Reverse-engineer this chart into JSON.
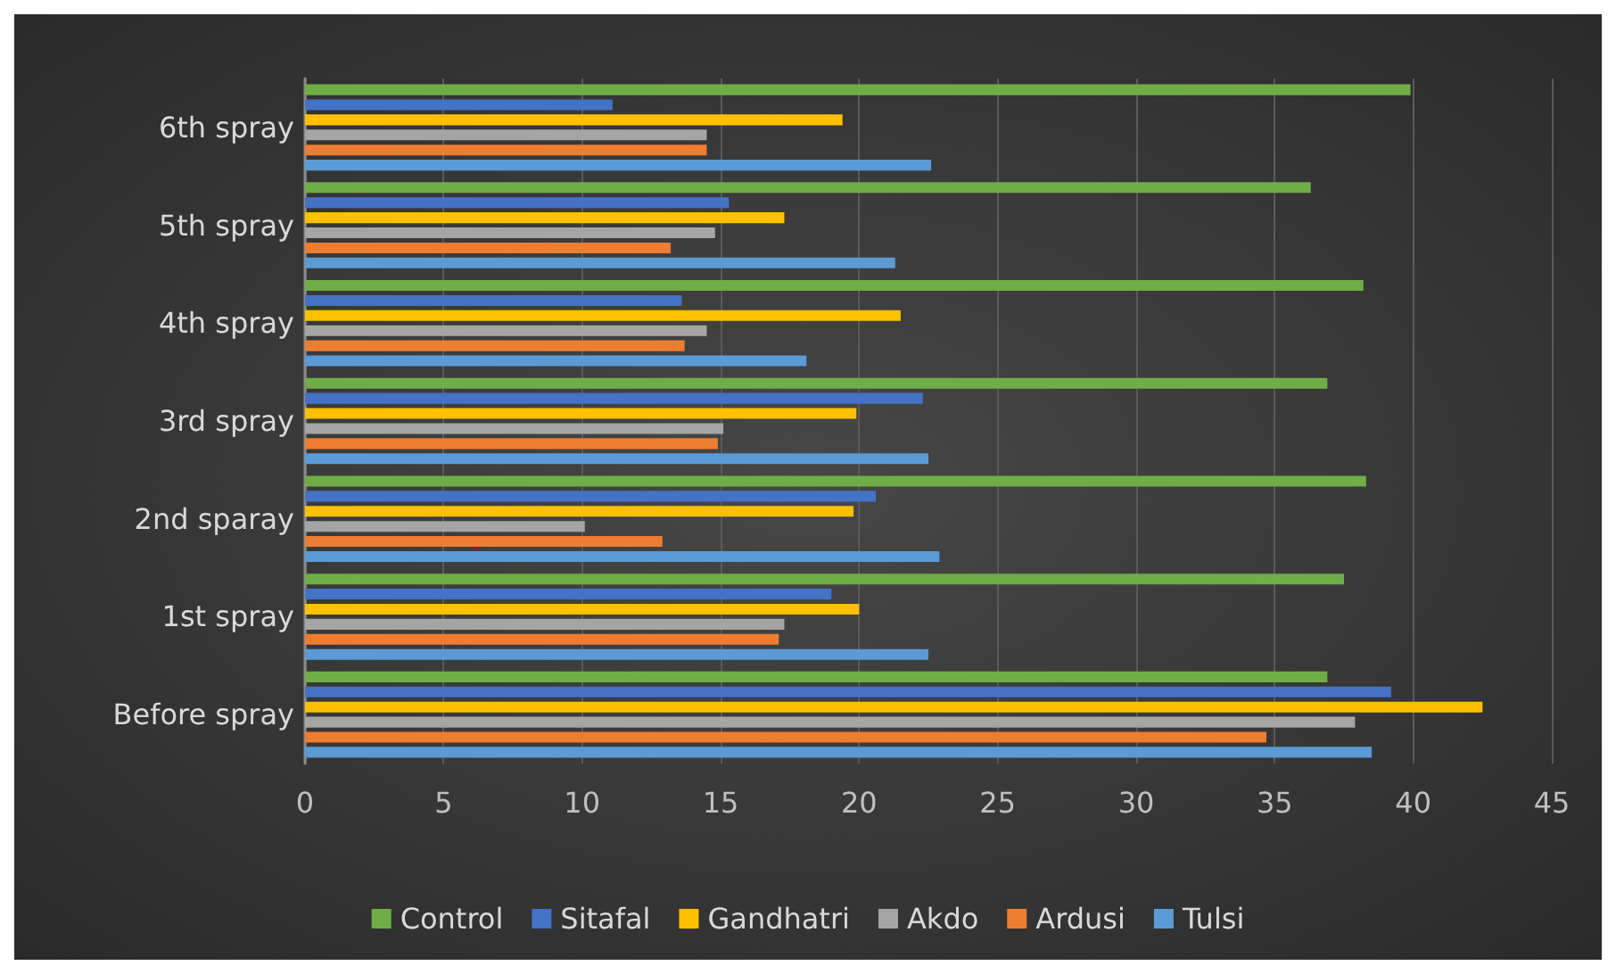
{
  "chart_data": {
    "type": "bar",
    "orientation": "horizontal",
    "categories": [
      "6th spray",
      "5th spray",
      "4th spray",
      "3rd spray",
      "2nd sparay",
      "1st spray",
      "Before spray"
    ],
    "series": [
      {
        "name": "Control",
        "color": "#70ad47",
        "values": [
          39.9,
          36.3,
          38.2,
          36.9,
          38.3,
          37.5,
          36.9
        ]
      },
      {
        "name": "Sitafal",
        "color": "#4472c4",
        "values": [
          11.1,
          15.3,
          13.6,
          22.3,
          20.6,
          19.0,
          39.2
        ]
      },
      {
        "name": "Gandhatri",
        "color": "#ffc000",
        "values": [
          19.4,
          17.3,
          21.5,
          19.9,
          19.8,
          20.0,
          42.5
        ]
      },
      {
        "name": "Akdo",
        "color": "#a5a5a5",
        "values": [
          14.5,
          14.8,
          14.5,
          15.1,
          10.1,
          17.3,
          37.9
        ]
      },
      {
        "name": "Ardusi",
        "color": "#ed7d31",
        "values": [
          14.5,
          13.2,
          13.7,
          14.9,
          12.9,
          17.1,
          34.7
        ]
      },
      {
        "name": "Tulsi",
        "color": "#5b9bd5",
        "values": [
          22.6,
          21.3,
          18.1,
          22.5,
          22.9,
          22.5,
          38.5
        ]
      }
    ],
    "xlim": [
      0,
      45
    ],
    "xticks": [
      0,
      5,
      10,
      15,
      20,
      25,
      30,
      35,
      40,
      45
    ],
    "grid": "x",
    "legend": "bottom"
  }
}
